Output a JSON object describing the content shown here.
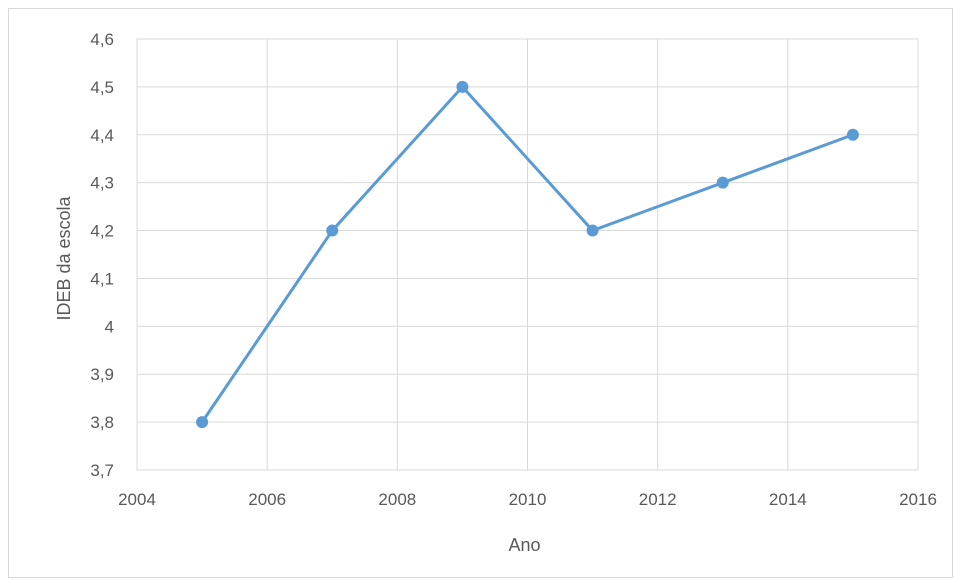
{
  "chart_data": {
    "type": "scatter",
    "mode": "lines+markers",
    "title": "",
    "xlabel": "Ano",
    "ylabel": "IDEB da escola",
    "xlim": [
      2004,
      2016
    ],
    "ylim": [
      3.7,
      4.6
    ],
    "x_ticks": [
      2004,
      2006,
      2008,
      2010,
      2012,
      2014,
      2016
    ],
    "x_tick_labels": [
      "2004",
      "2006",
      "2008",
      "2010",
      "2012",
      "2014",
      "2016"
    ],
    "y_ticks": [
      3.7,
      3.8,
      3.9,
      4.0,
      4.1,
      4.2,
      4.3,
      4.4,
      4.5,
      4.6
    ],
    "y_tick_labels": [
      "3,7",
      "3,8",
      "3,9",
      "4",
      "4,1",
      "4,2",
      "4,3",
      "4,4",
      "4,5",
      "4,6"
    ],
    "grid": true,
    "legend": "none",
    "series": [
      {
        "color": "#5b9bd5",
        "x": [
          2005,
          2007,
          2009,
          2011,
          2013,
          2015
        ],
        "y": [
          3.8,
          4.2,
          4.5,
          4.2,
          4.3,
          4.4
        ]
      }
    ]
  }
}
